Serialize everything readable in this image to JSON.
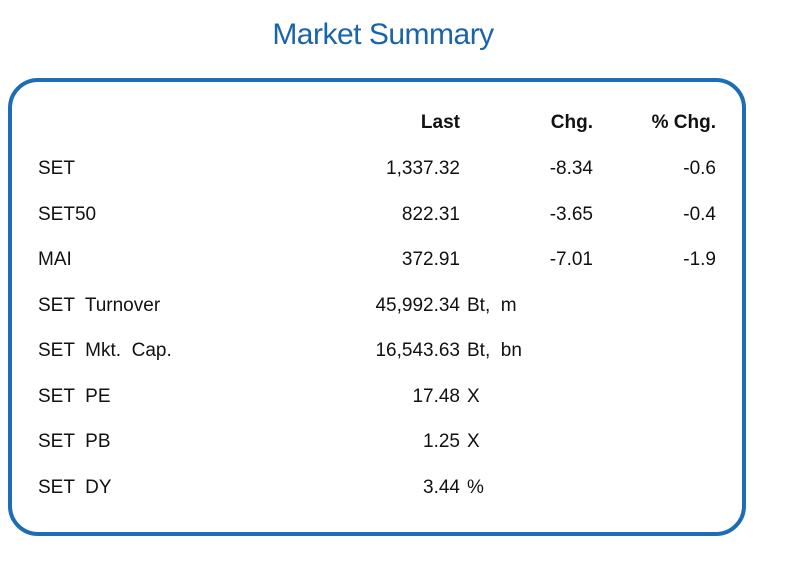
{
  "title": "Market Summary",
  "headers": {
    "last": "Last",
    "chg": "Chg.",
    "pct": "% Chg."
  },
  "rows": [
    {
      "name": "SET",
      "last": "1,337.32",
      "unit": "",
      "chg": "-8.34",
      "pct": "-0.6"
    },
    {
      "name": "SET50",
      "last": "822.31",
      "unit": "",
      "chg": "-3.65",
      "pct": "-0.4"
    },
    {
      "name": "MAI",
      "last": "372.91",
      "unit": "",
      "chg": "-7.01",
      "pct": "-1.9"
    },
    {
      "name": "SET  Turnover",
      "last": "45,992.34",
      "unit": "Bt,  m",
      "chg": "",
      "pct": ""
    },
    {
      "name": "SET  Mkt.  Cap.",
      "last": "16,543.63",
      "unit": "Bt,  bn",
      "chg": "",
      "pct": ""
    },
    {
      "name": "SET  PE",
      "last": "17.48",
      "unit": "X",
      "chg": "",
      "pct": ""
    },
    {
      "name": "SET  PB",
      "last": "1.25",
      "unit": "X",
      "chg": "",
      "pct": ""
    },
    {
      "name": "SET  DY",
      "last": "3.44",
      "unit": "%",
      "chg": "",
      "pct": ""
    }
  ],
  "colors": {
    "accent": "#1d6db6",
    "title": "#1a64aa"
  }
}
